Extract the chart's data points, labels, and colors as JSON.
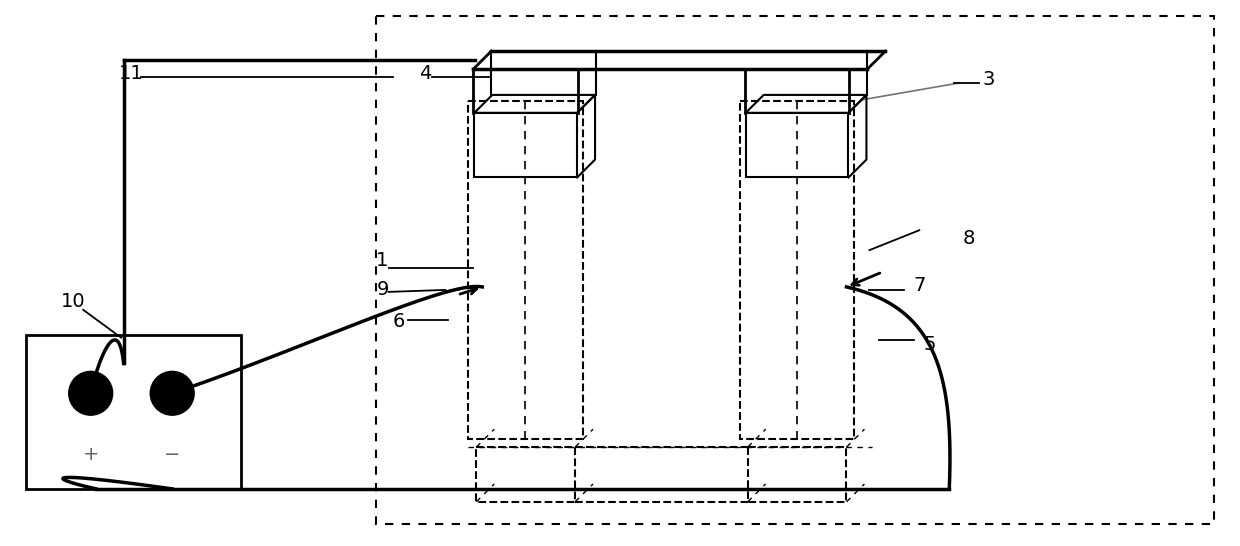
{
  "fig_width": 12.4,
  "fig_height": 5.46,
  "bg_color": "#ffffff",
  "line_color": "#000000"
}
